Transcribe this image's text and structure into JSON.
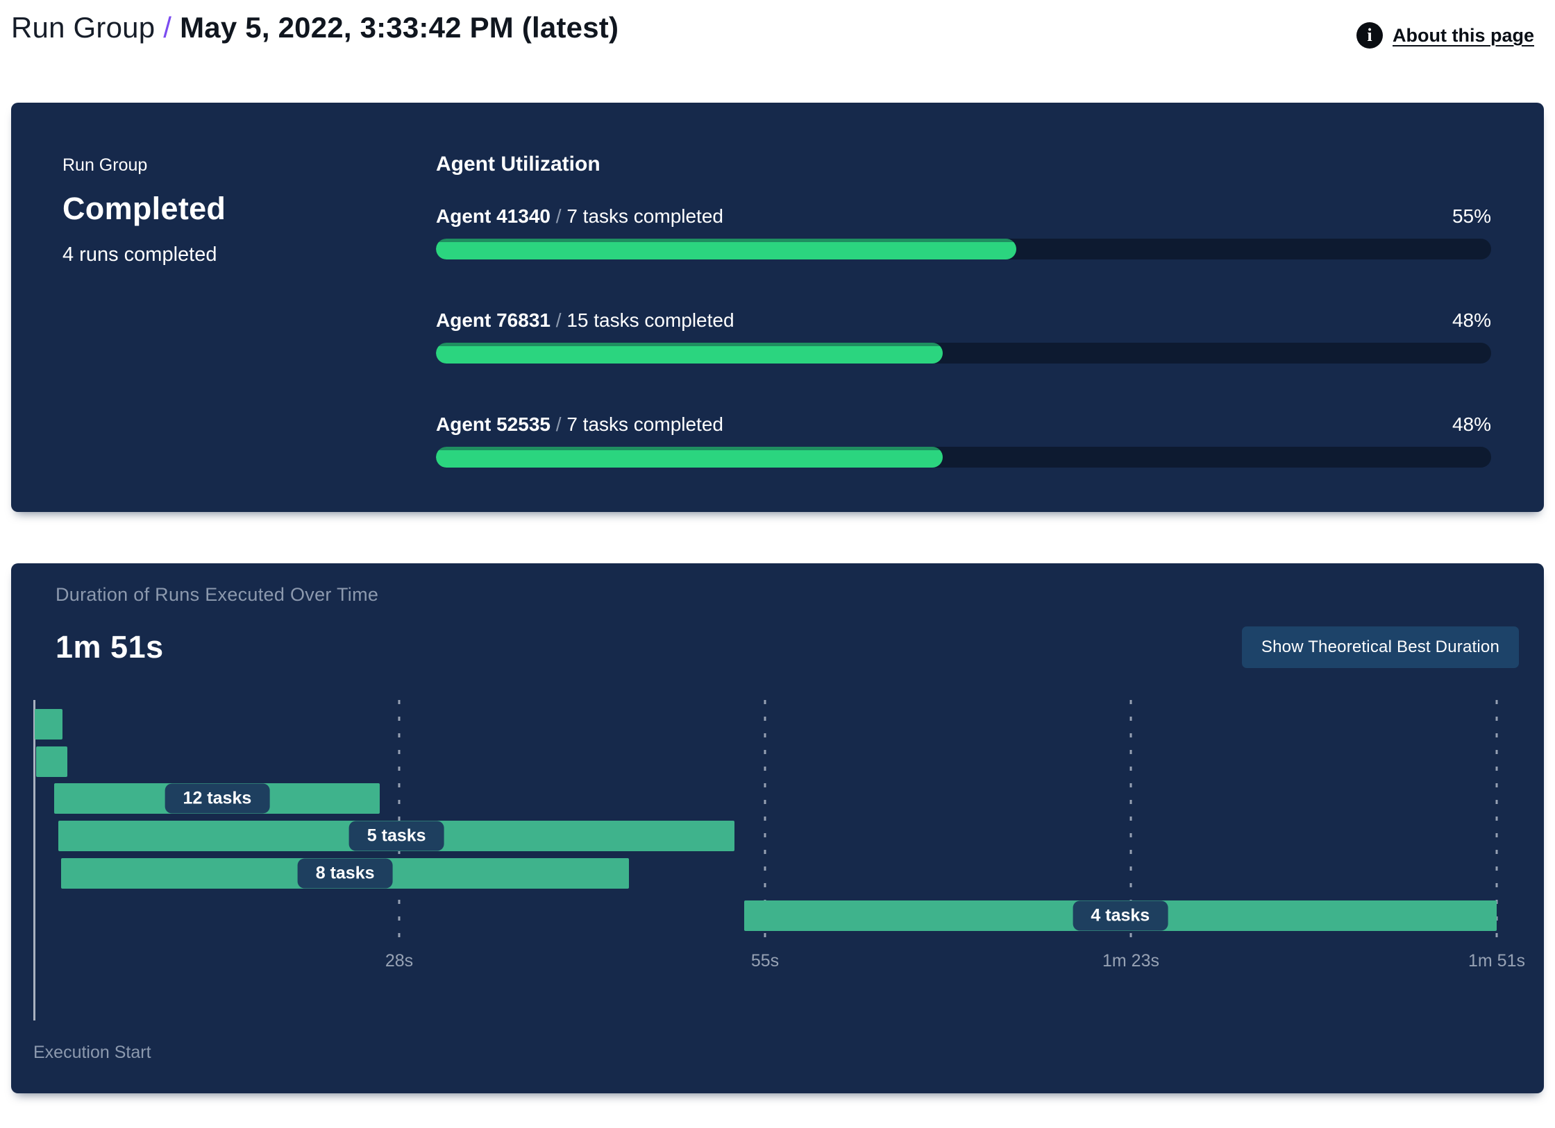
{
  "header": {
    "title_prefix": "Run Group",
    "separator": "/",
    "title_date": "May 5, 2022, 3:33:42 PM (latest)",
    "info_icon": "i",
    "about_link": "About this page"
  },
  "status_panel": {
    "label": "Run Group",
    "status": "Completed",
    "runs_completed": "4 runs completed"
  },
  "agent_utilization": {
    "title": "Agent Utilization",
    "separator": "/",
    "agents": [
      {
        "name": "Agent 41340",
        "tasks": "7 tasks completed",
        "percent": 55
      },
      {
        "name": "Agent 76831",
        "tasks": "15 tasks completed",
        "percent": 48
      },
      {
        "name": "Agent 52535",
        "tasks": "7 tasks completed",
        "percent": 48
      }
    ]
  },
  "duration_panel": {
    "title": "Duration of Runs Executed Over Time",
    "total_duration": "1m 51s",
    "button_label": "Show Theoretical Best Duration",
    "execution_start_label": "Execution Start"
  },
  "chart_data": {
    "type": "gantt",
    "title": "Duration of Runs Executed Over Time",
    "total_duration_label": "1m 51s",
    "total_seconds": 111,
    "x_axis": {
      "start_label": "Execution Start",
      "gridlines": "dashed-vertical"
    },
    "x_ticks": [
      {
        "label": "28s",
        "seconds": 27.75
      },
      {
        "label": "55s",
        "seconds": 55.5
      },
      {
        "label": "1m 23s",
        "seconds": 83.25
      },
      {
        "label": "1m 51s",
        "seconds": 111
      }
    ],
    "bars": [
      {
        "row": 1,
        "start_s": 0.1,
        "end_s": 2.2,
        "label": ""
      },
      {
        "row": 2,
        "start_s": 0.2,
        "end_s": 2.6,
        "label": ""
      },
      {
        "row": 3,
        "start_s": 1.6,
        "end_s": 26.3,
        "label": "12 tasks"
      },
      {
        "row": 4,
        "start_s": 1.9,
        "end_s": 53.2,
        "label": "5 tasks"
      },
      {
        "row": 5,
        "start_s": 2.1,
        "end_s": 45.2,
        "label": "8 tasks"
      },
      {
        "row": 6,
        "start_s": 53.9,
        "end_s": 111,
        "label": "4 tasks"
      }
    ],
    "colors": {
      "panel_bg": "#16294b",
      "gantt_bar": "#3fb38c",
      "label_pill_bg": "#1e3f5f",
      "progress_fill": "#2bd57f",
      "progress_fill_edge": "#1f8f60",
      "progress_track": "#0d1a30",
      "muted_text": "#8c99ae",
      "accent_purple": "#7b4bf0"
    }
  }
}
